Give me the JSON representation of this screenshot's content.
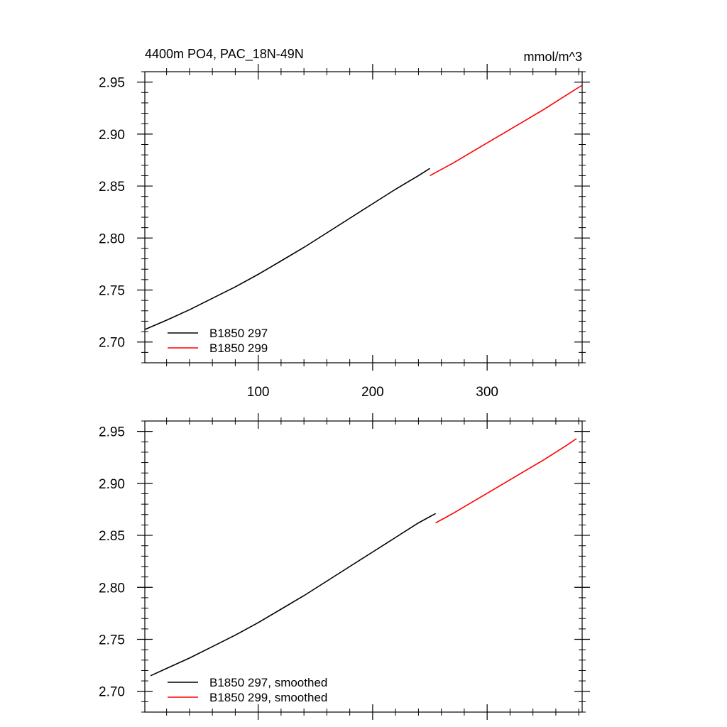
{
  "chart_data": [
    {
      "type": "line",
      "title": "4400m PO4, PAC_18N-49N",
      "units": "mmol/m^3",
      "xlim": [
        1,
        383
      ],
      "ylim": [
        2.68,
        2.96
      ],
      "xticks": [
        100,
        200,
        300
      ],
      "yticks": [
        2.7,
        2.75,
        2.8,
        2.85,
        2.9,
        2.95
      ],
      "ytick_labels": [
        "2.70",
        "2.75",
        "2.80",
        "2.85",
        "2.90",
        "2.95"
      ],
      "legend": "bottom-left",
      "series": [
        {
          "name": "B1850 297",
          "color": "#000000",
          "x": [
            1,
            20,
            40,
            60,
            80,
            100,
            120,
            140,
            160,
            180,
            200,
            220,
            240,
            250
          ],
          "y": [
            2.712,
            2.721,
            2.731,
            2.742,
            2.753,
            2.765,
            2.778,
            2.791,
            2.805,
            2.819,
            2.833,
            2.847,
            2.86,
            2.867
          ]
        },
        {
          "name": "B1850 299",
          "color": "#ff0000",
          "x": [
            250,
            270,
            290,
            310,
            330,
            350,
            370,
            383
          ],
          "y": [
            2.86,
            2.872,
            2.885,
            2.898,
            2.911,
            2.924,
            2.938,
            2.947
          ]
        }
      ]
    },
    {
      "type": "line",
      "xlim": [
        1,
        383
      ],
      "ylim": [
        2.68,
        2.96
      ],
      "xticks": [
        100,
        200,
        300
      ],
      "yticks": [
        2.7,
        2.75,
        2.8,
        2.85,
        2.9,
        2.95
      ],
      "ytick_labels": [
        "2.70",
        "2.75",
        "2.80",
        "2.85",
        "2.90",
        "2.95"
      ],
      "legend": "bottom-left",
      "series": [
        {
          "name": "B1850 297, smoothed",
          "color": "#000000",
          "x": [
            6,
            20,
            40,
            60,
            80,
            100,
            120,
            140,
            160,
            180,
            200,
            220,
            240,
            255
          ],
          "y": [
            2.715,
            2.722,
            2.732,
            2.743,
            2.754,
            2.766,
            2.779,
            2.792,
            2.806,
            2.82,
            2.834,
            2.848,
            2.862,
            2.871
          ]
        },
        {
          "name": "B1850 299, smoothed",
          "color": "#ff0000",
          "x": [
            255,
            270,
            290,
            310,
            330,
            350,
            370,
            378
          ],
          "y": [
            2.862,
            2.871,
            2.884,
            2.897,
            2.91,
            2.923,
            2.937,
            2.943
          ]
        }
      ]
    }
  ]
}
